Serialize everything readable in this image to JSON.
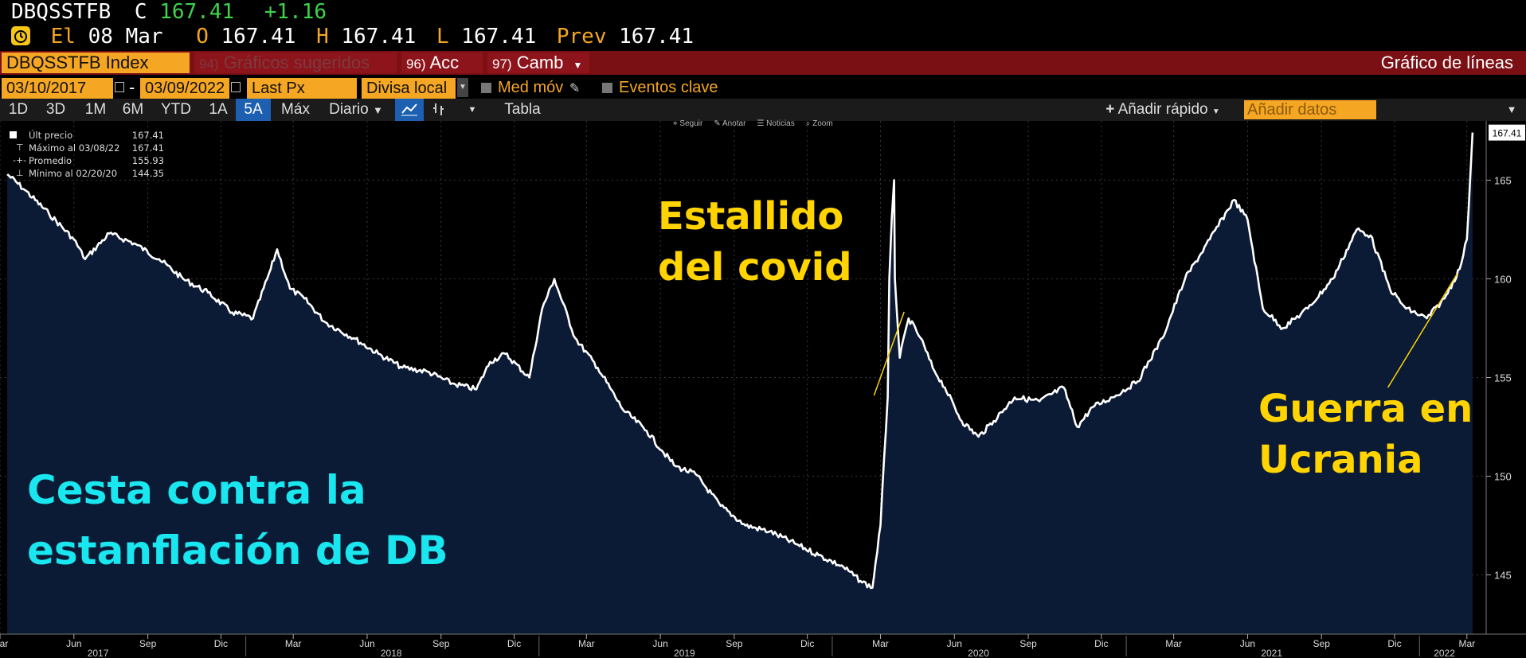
{
  "header": {
    "ticker": "DBQSSTFB",
    "close_label": "C",
    "close_value": "167.41",
    "change": "+1.16",
    "date_label": "El",
    "date": "08 Mar",
    "open_label": "O",
    "open_value": "167.41",
    "high_label": "H",
    "high_value": "167.41",
    "low_label": "L",
    "low_value": "167.41",
    "prev_label": "Prev",
    "prev_value": "167.41"
  },
  "menubar": {
    "security": "DBQSSTFB Index",
    "suggested_num": "94)",
    "suggested": "Gráficos sugeridos",
    "actions_num": "96)",
    "actions": "Acc",
    "edit_num": "97)",
    "edit": "Camb",
    "chart_type": "Gráfico de líneas"
  },
  "controls": {
    "start_date": "03/10/2017",
    "separator": "-",
    "end_date": "03/09/2022",
    "field": "Last Px",
    "currency": "Divisa local",
    "moving_avg": "Med móv",
    "key_events": "Eventos clave"
  },
  "ranges": [
    "1D",
    "3D",
    "1M",
    "6M",
    "YTD",
    "1A",
    "5A",
    "Máx"
  ],
  "active_range": "5A",
  "periodicity": "Diario",
  "table_label": "Tabla",
  "quick_add": "Añadir rápido",
  "add_data_placeholder": "Añadir datos",
  "tools": [
    "Seguir",
    "Anotar",
    "Noticias",
    "Zoom"
  ],
  "legend": [
    {
      "label": "Últ precio",
      "value": "167.41"
    },
    {
      "label": "Máximo al 03/08/22",
      "value": "167.41"
    },
    {
      "label": "Promedio",
      "value": "155.93"
    },
    {
      "label": "Mínimo al 02/20/20",
      "value": "144.35"
    }
  ],
  "annotations": {
    "covid_line1": "Estallido",
    "covid_line2": "del covid",
    "ukraine_line1": "Guerra en",
    "ukraine_line2": "Ucrania",
    "basket_line1": "Cesta contra la",
    "basket_line2": "estanflación de DB"
  },
  "colors": {
    "area_fill": "#0b1b36",
    "line": "#ffffff",
    "annotation_yellow": "#ffd400",
    "annotation_cyan": "#19e6ef",
    "accent_orange": "#f5a623"
  },
  "chart_data": {
    "type": "area",
    "title": "",
    "xlabel": "",
    "ylabel": "",
    "ylim": [
      142,
      168
    ],
    "yticks": [
      145,
      150,
      155,
      160,
      165
    ],
    "last_price_label": "167.41",
    "x_ticks": [
      {
        "date": "2017-03-01",
        "label": "Mar"
      },
      {
        "date": "2017-06-01",
        "label": "Jun"
      },
      {
        "date": "2017-09-01",
        "label": "Sep"
      },
      {
        "date": "2017-12-01",
        "label": "Dic"
      },
      {
        "date": "2018-03-01",
        "label": "Mar"
      },
      {
        "date": "2018-06-01",
        "label": "Jun"
      },
      {
        "date": "2018-09-01",
        "label": "Sep"
      },
      {
        "date": "2018-12-01",
        "label": "Dic"
      },
      {
        "date": "2019-03-01",
        "label": "Mar"
      },
      {
        "date": "2019-06-01",
        "label": "Jun"
      },
      {
        "date": "2019-09-01",
        "label": "Sep"
      },
      {
        "date": "2019-12-01",
        "label": "Dic"
      },
      {
        "date": "2020-03-01",
        "label": "Mar"
      },
      {
        "date": "2020-06-01",
        "label": "Jun"
      },
      {
        "date": "2020-09-01",
        "label": "Sep"
      },
      {
        "date": "2020-12-01",
        "label": "Dic"
      },
      {
        "date": "2021-03-01",
        "label": "Mar"
      },
      {
        "date": "2021-06-01",
        "label": "Jun"
      },
      {
        "date": "2021-09-01",
        "label": "Sep"
      },
      {
        "date": "2021-12-01",
        "label": "Dic"
      },
      {
        "date": "2022-03-01",
        "label": "Mar"
      }
    ],
    "year_labels": [
      {
        "date": "2017-07-01",
        "label": "2017"
      },
      {
        "date": "2018-07-01",
        "label": "2018"
      },
      {
        "date": "2019-07-01",
        "label": "2019"
      },
      {
        "date": "2020-07-01",
        "label": "2020"
      },
      {
        "date": "2021-07-01",
        "label": "2021"
      },
      {
        "date": "2022-02-01",
        "label": "2022"
      }
    ],
    "series": [
      {
        "x": [
          "2017-03-10",
          "2017-04-01",
          "2017-05-01",
          "2017-06-01",
          "2017-06-15",
          "2017-07-15",
          "2017-08-15",
          "2017-09-15",
          "2017-10-15",
          "2017-11-15",
          "2017-12-15",
          "2018-01-10",
          "2018-02-01",
          "2018-02-09",
          "2018-02-25",
          "2018-03-15",
          "2018-04-10",
          "2018-05-15",
          "2018-06-15",
          "2018-07-15",
          "2018-08-15",
          "2018-09-15",
          "2018-10-15",
          "2018-11-01",
          "2018-11-20",
          "2018-12-20",
          "2019-01-05",
          "2019-01-20",
          "2019-02-15",
          "2019-03-15",
          "2019-04-15",
          "2019-05-15",
          "2019-06-03",
          "2019-06-20",
          "2019-07-15",
          "2019-08-15",
          "2019-09-15",
          "2019-10-15",
          "2019-11-15",
          "2019-12-15",
          "2020-01-15",
          "2020-02-05",
          "2020-02-20",
          "2020-03-01",
          "2020-03-10",
          "2020-03-12",
          "2020-03-15",
          "2020-03-18",
          "2020-03-19",
          "2020-03-25",
          "2020-04-05",
          "2020-04-20",
          "2020-05-05",
          "2020-05-20",
          "2020-06-10",
          "2020-07-01",
          "2020-07-20",
          "2020-08-15",
          "2020-09-15",
          "2020-10-15",
          "2020-11-01",
          "2020-11-20",
          "2020-12-15",
          "2021-01-15",
          "2021-02-15",
          "2021-03-15",
          "2021-04-15",
          "2021-05-15",
          "2021-06-01",
          "2021-06-20",
          "2021-07-15",
          "2021-08-15",
          "2021-09-15",
          "2021-10-15",
          "2021-11-01",
          "2021-11-25",
          "2021-12-15",
          "2022-01-10",
          "2022-02-01",
          "2022-02-20",
          "2022-03-01",
          "2022-03-05",
          "2022-03-08"
        ],
        "values": [
          165.3,
          164.5,
          163.3,
          162.0,
          161.0,
          162.3,
          161.8,
          161.0,
          160.0,
          159.3,
          158.3,
          158.0,
          160.5,
          161.5,
          159.5,
          159.0,
          157.8,
          157.0,
          156.2,
          155.5,
          155.3,
          154.7,
          154.4,
          155.8,
          156.2,
          155.0,
          158.5,
          160.0,
          157.0,
          155.5,
          153.4,
          152.3,
          151.3,
          150.5,
          150.1,
          148.5,
          147.5,
          147.2,
          146.6,
          146.0,
          145.4,
          144.7,
          144.35,
          147.5,
          154.0,
          160.0,
          163.0,
          165.0,
          160.0,
          156.0,
          158.0,
          157.0,
          155.5,
          154.5,
          152.8,
          152.0,
          152.8,
          154.0,
          153.8,
          154.5,
          152.5,
          153.5,
          154.0,
          154.8,
          157.0,
          160.0,
          162.0,
          164.0,
          163.0,
          158.5,
          157.5,
          158.5,
          160.0,
          162.5,
          162.2,
          159.5,
          158.5,
          158.0,
          159.0,
          160.5,
          162.0,
          165.0,
          167.41
        ]
      }
    ]
  }
}
